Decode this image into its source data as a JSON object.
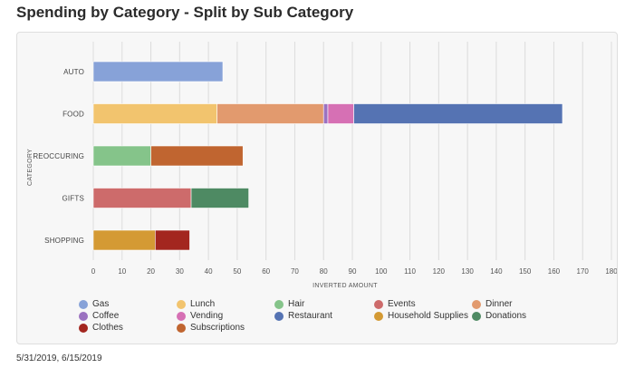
{
  "page": {
    "title": "Spending by Category - Split by Sub Category",
    "footer": "5/31/2019, 6/15/2019"
  },
  "chart_data": {
    "type": "bar",
    "orientation": "horizontal",
    "stacked": true,
    "title": "Spending by Category - Split by Sub Category",
    "xlabel": "INVERTED AMOUNT",
    "ylabel": "CATEGORY",
    "xlim": [
      0,
      180
    ],
    "xticks": [
      0,
      10,
      20,
      30,
      40,
      50,
      60,
      70,
      80,
      90,
      100,
      110,
      120,
      130,
      140,
      150,
      160,
      170,
      180
    ],
    "grid": true,
    "legend_position": "bottom",
    "categories": [
      "AUTO",
      "FOOD",
      "REOCCURING",
      "GIFTS",
      "SHOPPING"
    ],
    "series": [
      {
        "name": "Gas",
        "color": "#87a2d8",
        "values": [
          45,
          0,
          0,
          0,
          0
        ]
      },
      {
        "name": "Lunch",
        "color": "#f2c46e",
        "values": [
          0,
          43,
          0,
          0,
          0
        ]
      },
      {
        "name": "Hair",
        "color": "#85c48a",
        "values": [
          0,
          0,
          20,
          0,
          0
        ]
      },
      {
        "name": "Events",
        "color": "#cd6b6b",
        "values": [
          0,
          0,
          0,
          34,
          0
        ]
      },
      {
        "name": "Dinner",
        "color": "#e29a6e",
        "values": [
          0,
          37,
          0,
          0,
          0
        ]
      },
      {
        "name": "Coffee",
        "color": "#9b72c0",
        "values": [
          0,
          1.5,
          0,
          0,
          0
        ]
      },
      {
        "name": "Vending",
        "color": "#d670b4",
        "values": [
          0,
          9,
          0,
          0,
          0
        ]
      },
      {
        "name": "Restaurant",
        "color": "#5573b3",
        "values": [
          0,
          72.5,
          0,
          0,
          0
        ]
      },
      {
        "name": "Household Supplies",
        "color": "#d49a34",
        "values": [
          0,
          0,
          0,
          0,
          21.5
        ]
      },
      {
        "name": "Donations",
        "color": "#4e8a63",
        "values": [
          0,
          0,
          0,
          20,
          0
        ]
      },
      {
        "name": "Clothes",
        "color": "#a3261f",
        "values": [
          0,
          0,
          0,
          0,
          12
        ]
      },
      {
        "name": "Subscriptions",
        "color": "#c06530",
        "values": [
          0,
          0,
          32,
          0,
          0
        ]
      }
    ],
    "stack_order": [
      [
        "Gas"
      ],
      [
        "Lunch",
        "Dinner",
        "Coffee",
        "Vending",
        "Restaurant"
      ],
      [
        "Hair",
        "Subscriptions"
      ],
      [
        "Events",
        "Donations"
      ],
      [
        "Household Supplies",
        "Clothes"
      ]
    ]
  }
}
